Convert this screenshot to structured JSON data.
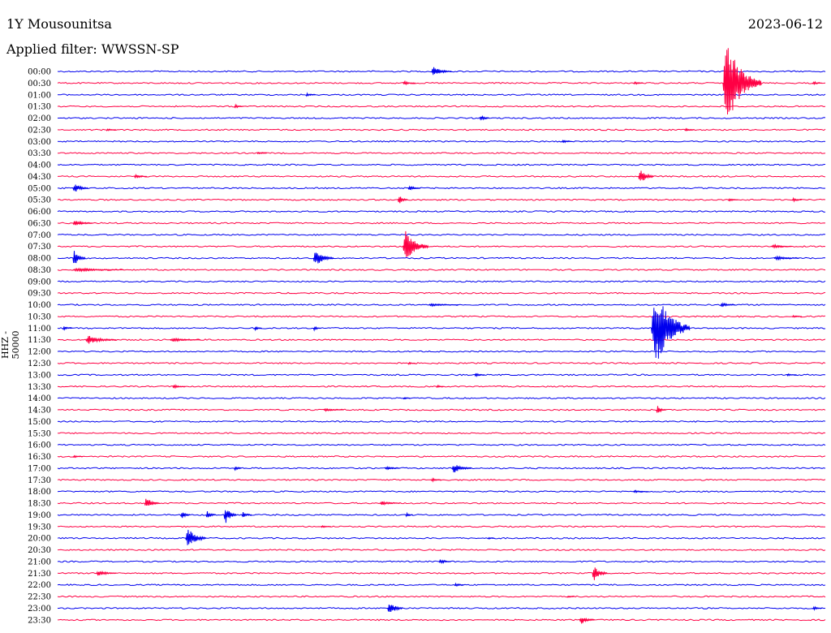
{
  "header": {
    "station": "1Y Mousounitsa",
    "filter": "Applied filter: WWSSN-SP",
    "date": "2023-06-12"
  },
  "colors": {
    "blue": "#0000ee",
    "red": "#ff0044"
  },
  "chart_data": {
    "type": "helicorder",
    "title": "1Y Mousounitsa",
    "subtitle": "Applied filter: WWSSN-SP",
    "date": "2023-06-12",
    "ylabel": "HHZ - 50000",
    "grid": false,
    "row_labels": [
      "00:00",
      "00:30",
      "01:00",
      "01:30",
      "02:00",
      "02:30",
      "03:00",
      "03:30",
      "04:00",
      "04:30",
      "05:00",
      "05:30",
      "06:00",
      "06:30",
      "07:00",
      "07:30",
      "08:00",
      "08:30",
      "09:00",
      "09:30",
      "10:00",
      "10:30",
      "11:00",
      "11:30",
      "12:00",
      "12:30",
      "13:00",
      "13:30",
      "14:00",
      "14:30",
      "15:00",
      "15:30",
      "16:00",
      "16:30",
      "17:00",
      "17:30",
      "18:00",
      "18:30",
      "19:00",
      "19:30",
      "20:00",
      "20:30",
      "21:00",
      "21:30",
      "22:00",
      "22:30",
      "23:00",
      "23:30"
    ],
    "row_colors": [
      "blue",
      "red"
    ],
    "minutes_per_row": 30,
    "events": [
      {
        "row": 0,
        "minute": 14.6,
        "amp": 8,
        "dur": 0.8
      },
      {
        "row": 1,
        "minute": 13.5,
        "amp": 3,
        "dur": 0.5
      },
      {
        "row": 1,
        "minute": 22.5,
        "amp": 3,
        "dur": 0.4
      },
      {
        "row": 1,
        "minute": 29.5,
        "amp": 3,
        "dur": 0.4
      },
      {
        "row": 1,
        "minute": 26.0,
        "amp": 72,
        "dur": 1.5
      },
      {
        "row": 2,
        "minute": 9.7,
        "amp": 3,
        "dur": 0.4
      },
      {
        "row": 3,
        "minute": 6.9,
        "amp": 3,
        "dur": 0.4
      },
      {
        "row": 4,
        "minute": 16.5,
        "amp": 4,
        "dur": 0.4
      },
      {
        "row": 5,
        "minute": 1.9,
        "amp": 2,
        "dur": 0.4
      },
      {
        "row": 5,
        "minute": 24.5,
        "amp": 3,
        "dur": 0.4
      },
      {
        "row": 6,
        "minute": 19.7,
        "amp": 3,
        "dur": 0.4
      },
      {
        "row": 7,
        "minute": 7.8,
        "amp": 2,
        "dur": 0.4
      },
      {
        "row": 9,
        "minute": 3.0,
        "amp": 3,
        "dur": 0.5
      },
      {
        "row": 9,
        "minute": 22.7,
        "amp": 14,
        "dur": 0.6
      },
      {
        "row": 10,
        "minute": 0.6,
        "amp": 8,
        "dur": 0.6
      },
      {
        "row": 10,
        "minute": 13.7,
        "amp": 4,
        "dur": 0.5
      },
      {
        "row": 11,
        "minute": 13.3,
        "amp": 8,
        "dur": 0.4
      },
      {
        "row": 11,
        "minute": 26.2,
        "amp": 3,
        "dur": 0.4
      },
      {
        "row": 11,
        "minute": 28.7,
        "amp": 3,
        "dur": 0.4
      },
      {
        "row": 13,
        "minute": 0.6,
        "amp": 5,
        "dur": 0.8
      },
      {
        "row": 15,
        "minute": 13.5,
        "amp": 28,
        "dur": 1.0
      },
      {
        "row": 15,
        "minute": 27.9,
        "amp": 3,
        "dur": 0.8
      },
      {
        "row": 16,
        "minute": 0.6,
        "amp": 14,
        "dur": 0.5
      },
      {
        "row": 16,
        "minute": 10.0,
        "amp": 14,
        "dur": 0.8
      },
      {
        "row": 16,
        "minute": 28.0,
        "amp": 3,
        "dur": 1.0
      },
      {
        "row": 17,
        "minute": 0.6,
        "amp": 3,
        "dur": 2.0
      },
      {
        "row": 20,
        "minute": 14.5,
        "amp": 2,
        "dur": 1.2
      },
      {
        "row": 20,
        "minute": 25.9,
        "amp": 4,
        "dur": 0.6
      },
      {
        "row": 21,
        "minute": 28.7,
        "amp": 2,
        "dur": 0.4
      },
      {
        "row": 22,
        "minute": 0.2,
        "amp": 3,
        "dur": 0.4
      },
      {
        "row": 22,
        "minute": 7.7,
        "amp": 4,
        "dur": 0.3
      },
      {
        "row": 22,
        "minute": 10.0,
        "amp": 4,
        "dur": 0.3
      },
      {
        "row": 22,
        "minute": 23.2,
        "amp": 70,
        "dur": 1.5
      },
      {
        "row": 23,
        "minute": 1.1,
        "amp": 7,
        "dur": 1.2
      },
      {
        "row": 23,
        "minute": 4.4,
        "amp": 3,
        "dur": 1.2
      },
      {
        "row": 25,
        "minute": 13.7,
        "amp": 2,
        "dur": 0.3
      },
      {
        "row": 26,
        "minute": 16.3,
        "amp": 3,
        "dur": 0.4
      },
      {
        "row": 26,
        "minute": 28.5,
        "amp": 2,
        "dur": 0.4
      },
      {
        "row": 27,
        "minute": 4.5,
        "amp": 3,
        "dur": 0.5
      },
      {
        "row": 27,
        "minute": 14.8,
        "amp": 3,
        "dur": 0.3
      },
      {
        "row": 28,
        "minute": 13.5,
        "amp": 2,
        "dur": 0.3
      },
      {
        "row": 29,
        "minute": 10.4,
        "amp": 2,
        "dur": 0.8
      },
      {
        "row": 29,
        "minute": 23.4,
        "amp": 7,
        "dur": 0.4
      },
      {
        "row": 33,
        "minute": 0.6,
        "amp": 2,
        "dur": 0.4
      },
      {
        "row": 34,
        "minute": 6.9,
        "amp": 4,
        "dur": 0.3
      },
      {
        "row": 34,
        "minute": 12.8,
        "amp": 3,
        "dur": 0.6
      },
      {
        "row": 34,
        "minute": 15.4,
        "amp": 8,
        "dur": 0.8
      },
      {
        "row": 35,
        "minute": 14.6,
        "amp": 3,
        "dur": 0.4
      },
      {
        "row": 36,
        "minute": 22.5,
        "amp": 2,
        "dur": 0.6
      },
      {
        "row": 37,
        "minute": 3.4,
        "amp": 10,
        "dur": 0.6
      },
      {
        "row": 37,
        "minute": 12.6,
        "amp": 3,
        "dur": 0.8
      },
      {
        "row": 38,
        "minute": 4.8,
        "amp": 7,
        "dur": 0.4
      },
      {
        "row": 38,
        "minute": 5.8,
        "amp": 7,
        "dur": 0.4
      },
      {
        "row": 38,
        "minute": 7.2,
        "amp": 5,
        "dur": 0.4
      },
      {
        "row": 38,
        "minute": 6.5,
        "amp": 16,
        "dur": 0.5
      },
      {
        "row": 38,
        "minute": 13.6,
        "amp": 3,
        "dur": 0.3
      },
      {
        "row": 39,
        "minute": 10.3,
        "amp": 2,
        "dur": 0.4
      },
      {
        "row": 40,
        "minute": 5.0,
        "amp": 18,
        "dur": 0.8
      },
      {
        "row": 40,
        "minute": 16.8,
        "amp": 2,
        "dur": 0.3
      },
      {
        "row": 42,
        "minute": 14.9,
        "amp": 4,
        "dur": 0.5
      },
      {
        "row": 43,
        "minute": 1.5,
        "amp": 5,
        "dur": 0.8
      },
      {
        "row": 43,
        "minute": 20.9,
        "amp": 13,
        "dur": 0.6
      },
      {
        "row": 44,
        "minute": 15.5,
        "amp": 3,
        "dur": 0.4
      },
      {
        "row": 45,
        "minute": 19.9,
        "amp": 2,
        "dur": 0.3
      },
      {
        "row": 46,
        "minute": 12.9,
        "amp": 12,
        "dur": 0.6
      },
      {
        "row": 46,
        "minute": 29.5,
        "amp": 3,
        "dur": 0.4
      },
      {
        "row": 47,
        "minute": 20.4,
        "amp": 7,
        "dur": 0.6
      }
    ]
  }
}
